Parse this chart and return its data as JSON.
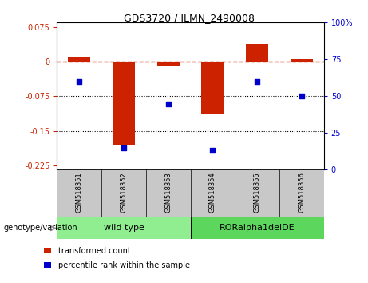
{
  "title": "GDS3720 / ILMN_2490008",
  "categories": [
    "GSM518351",
    "GSM518352",
    "GSM518353",
    "GSM518354",
    "GSM518355",
    "GSM518356"
  ],
  "red_bars": [
    0.01,
    -0.18,
    -0.008,
    -0.115,
    0.038,
    0.005
  ],
  "blue_dots": [
    60,
    15,
    45,
    13,
    60,
    50
  ],
  "ylim_left": [
    -0.235,
    0.085
  ],
  "ylim_right": [
    0,
    100
  ],
  "yticks_left": [
    0.075,
    0,
    -0.075,
    -0.15,
    -0.225
  ],
  "yticks_right": [
    100,
    75,
    50,
    25,
    0
  ],
  "hlines": [
    -0.075,
    -0.15
  ],
  "group1_label": "wild type",
  "group1_color": "#90EE90",
  "group2_label": "RORalpha1delDE",
  "group2_color": "#5CD65C",
  "bar_color": "#CC2200",
  "dot_color": "#0000CC",
  "tick_label_area_color": "#C8C8C8",
  "tick_label_sep_color": "#888888",
  "legend_red_label": "transformed count",
  "legend_blue_label": "percentile rank within the sample",
  "genotype_label": "genotype/variation",
  "bar_width": 0.5
}
